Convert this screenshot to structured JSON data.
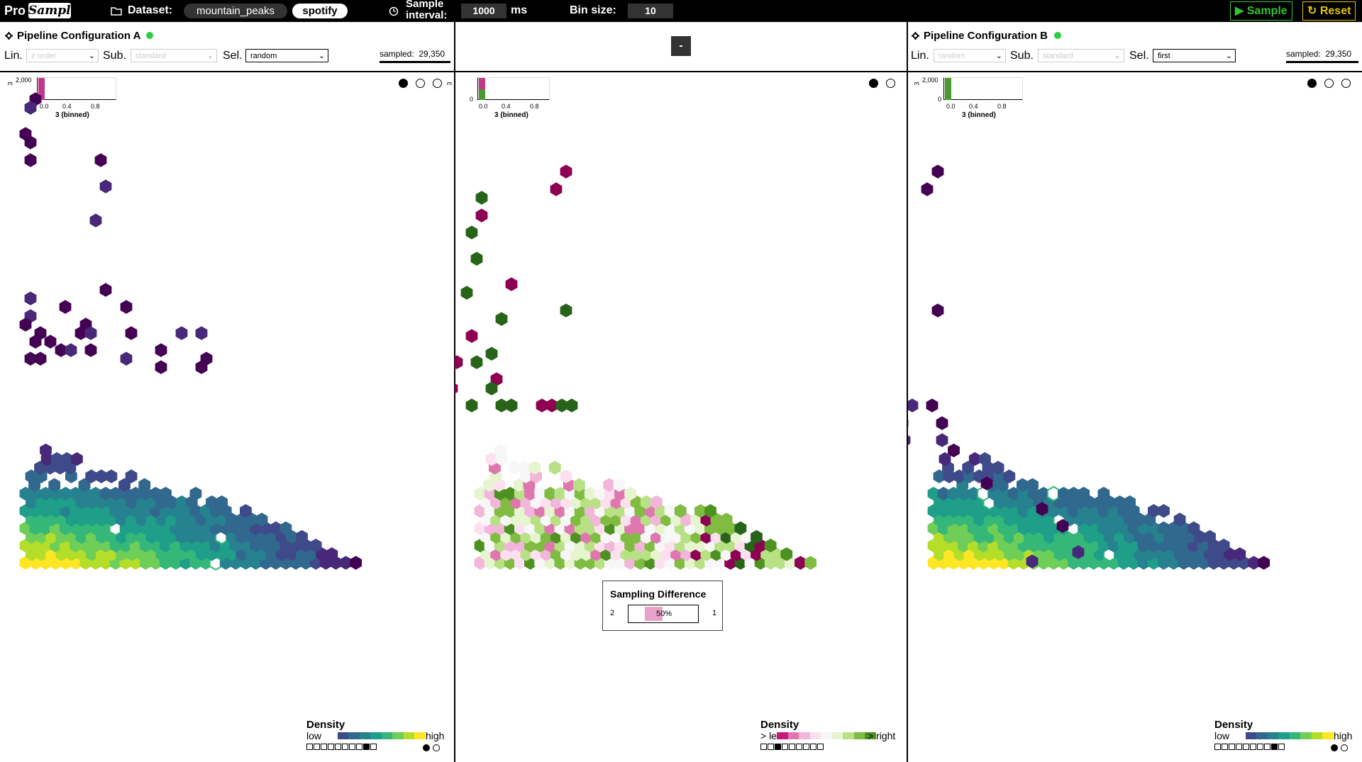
{
  "topbar": {
    "logo_pro": "Pro",
    "logo_sample": "Sample",
    "dataset_label": "Dataset:",
    "datasets": [
      "mountain_peaks",
      "spotify"
    ],
    "active_dataset": "spotify",
    "interval_label": "Sample interval:",
    "interval_value": "1000",
    "interval_unit": "ms",
    "binsize_label": "Bin size:",
    "binsize_value": "10",
    "sample_button": "▶ Sample",
    "reset_button": "↻ Reset",
    "colors": {
      "sample": "#34c334",
      "reset": "#e6c300"
    }
  },
  "config_a": {
    "title": "Pipeline Configuration A",
    "lin_label": "Lin.",
    "lin_value": "z-order",
    "sub_label": "Sub.",
    "sub_value": "standard",
    "sel_label": "Sel.",
    "sel_value": "random",
    "sampled_label": "sampled:",
    "sampled_value": "29,350",
    "status_color": "#2ecc40"
  },
  "config_b": {
    "title": "Pipeline Configuration B",
    "lin_label": "Lin.",
    "lin_value": "random",
    "sub_label": "Sub.",
    "sub_value": "standard",
    "sel_label": "Sel.",
    "sel_value": "first",
    "sampled_label": "sampled:",
    "sampled_value": "29,350",
    "status_color": "#2ecc40"
  },
  "middle": {
    "minus_button": "-"
  },
  "histograms": {
    "y_axis_label": "3",
    "y_tick_max": "2,000",
    "y_tick_min": "0",
    "x_ticks": [
      "0.0",
      "0.4",
      "0.8"
    ],
    "x_title": "3 (binned)",
    "colors": {
      "a": "#c2378a",
      "diff": "#4a9a2e",
      "b": "#4a9a2e"
    }
  },
  "tooltip": {
    "title": "Sampling Difference",
    "left_value": "2",
    "right_value": "1",
    "percent": "50%",
    "percent_fraction": 0.5
  },
  "legend_density": {
    "title": "Density",
    "low": "low",
    "high": "high",
    "ramp_colors": [
      "#ffffff",
      "#3e4a89",
      "#31688e",
      "#26828e",
      "#1f9e89",
      "#35b779",
      "#6ece58",
      "#b5de2b",
      "#fde725"
    ]
  },
  "legend_diff": {
    "title": "Density",
    "left": "> left",
    "right": "> right",
    "ramp_colors": [
      "#c51b7d",
      "#de77ae",
      "#f1b6da",
      "#fde0ef",
      "#f7f7f7",
      "#e6f5d0",
      "#b8e186",
      "#7fbc41",
      "#4d9221"
    ]
  },
  "hexbin": {
    "viridis": [
      "#440154",
      "#482878",
      "#3e4a89",
      "#31688e",
      "#26828e",
      "#1f9e89",
      "#35b779",
      "#6ece58",
      "#b5de2b",
      "#fde725"
    ],
    "diff_colors": [
      "#8e0152",
      "#c51b7d",
      "#de77ae",
      "#f1b6da",
      "#fde0ef",
      "#f7f7f7",
      "#e6f5d0",
      "#b8e186",
      "#7fbc41",
      "#4d9221",
      "#276419"
    ]
  }
}
